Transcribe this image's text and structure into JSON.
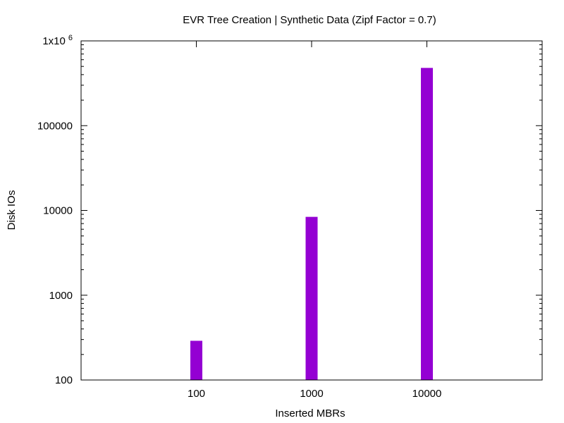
{
  "chart_data": {
    "type": "bar",
    "title": "EVR Tree Creation | Synthetic Data (Zipf Factor = 0.7)",
    "xlabel": "Inserted MBRs",
    "ylabel": "Disk IOs",
    "yscale": "log",
    "ylim": [
      100,
      1000000
    ],
    "categories": [
      "100",
      "1000",
      "10000"
    ],
    "series": [
      {
        "values": [
          290,
          8400,
          480000
        ]
      }
    ],
    "y_ticks": [
      {
        "value": 100,
        "label": "100"
      },
      {
        "value": 1000,
        "label": "1000"
      },
      {
        "value": 10000,
        "label": "10000"
      },
      {
        "value": 100000,
        "label": "100000"
      },
      {
        "value": 1000000,
        "label": "1x10",
        "superscript": "6"
      }
    ],
    "grid": false,
    "legend": "none",
    "bar_color": "#9400D3"
  }
}
